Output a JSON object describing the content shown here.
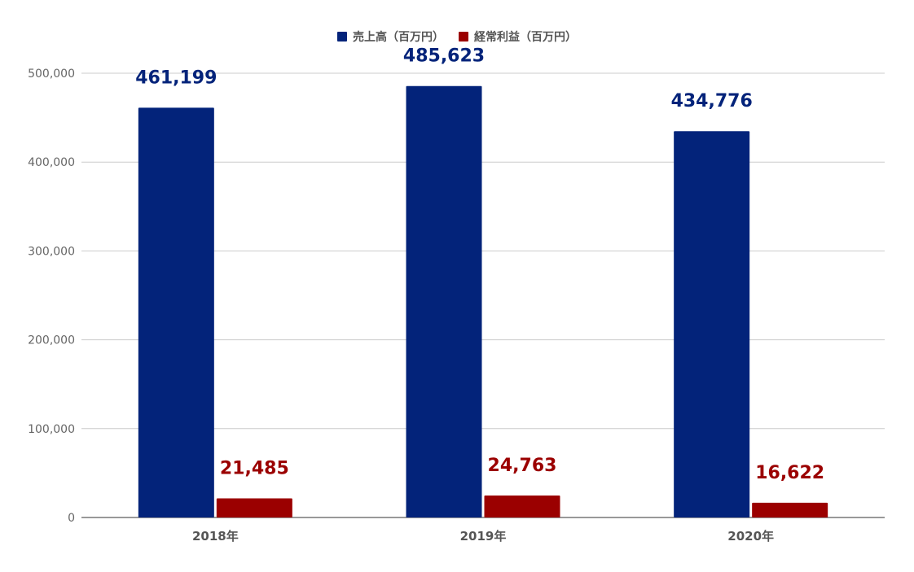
{
  "chart_data": {
    "type": "bar",
    "categories": [
      "2018年",
      "2019年",
      "2020年"
    ],
    "series": [
      {
        "name": "売上高（百万円）",
        "color": "#03237a",
        "values": [
          461199,
          485623,
          434776
        ],
        "labels": [
          "461,199",
          "485,623",
          "434,776"
        ]
      },
      {
        "name": "経常利益（百万円）",
        "color": "#9b0000",
        "values": [
          21485,
          24763,
          16622
        ],
        "labels": [
          "21,485",
          "24,763",
          "16,622"
        ]
      }
    ],
    "yticks": [
      0,
      100000,
      200000,
      300000,
      400000,
      500000
    ],
    "ytick_labels": [
      "0",
      "100,000",
      "200,000",
      "300,000",
      "400,000",
      "500,000"
    ],
    "ylim": [
      0,
      500000
    ],
    "grid": true,
    "legend": "top-center"
  }
}
